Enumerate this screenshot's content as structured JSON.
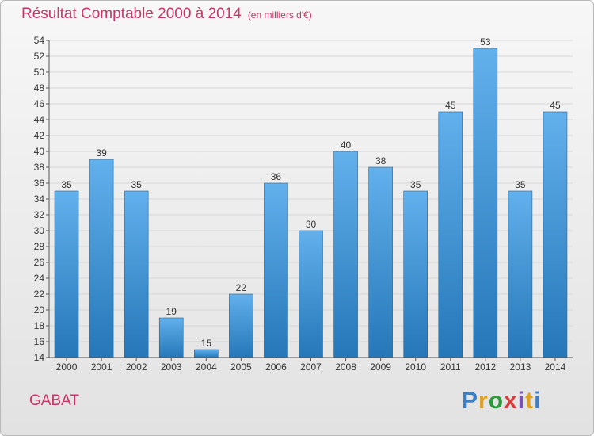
{
  "title": "Résultat Comptable 2000 à 2014",
  "subtitle": "(en milliers d'€)",
  "commune": "GABAT",
  "brand": {
    "text": "Proxiti",
    "letter_colors": [
      "#3d7fc6",
      "#e0a020",
      "#2a9a3a",
      "#d83c3c",
      "#7a4fb5",
      "#e0a020",
      "#3d7fc6"
    ]
  },
  "colors": {
    "title": "#cc3366",
    "bar_top": "#62b0ec",
    "bar_bottom": "#2577b8",
    "bar_edge": "#1d67a4"
  },
  "chart_data": {
    "type": "bar",
    "title": "Résultat Comptable 2000 à 2014",
    "subtitle": "(en milliers d'€)",
    "xlabel": "",
    "ylabel": "",
    "categories": [
      "2000",
      "2001",
      "2002",
      "2003",
      "2004",
      "2005",
      "2006",
      "2007",
      "2008",
      "2009",
      "2010",
      "2011",
      "2012",
      "2013",
      "2014"
    ],
    "values": [
      35,
      39,
      35,
      19,
      15,
      22,
      36,
      30,
      40,
      38,
      35,
      45,
      53,
      35,
      45
    ],
    "ylim": [
      14,
      54
    ],
    "yticks": [
      14,
      16,
      18,
      20,
      22,
      24,
      26,
      28,
      30,
      32,
      34,
      36,
      38,
      40,
      42,
      44,
      46,
      48,
      50,
      52,
      54
    ],
    "grid": true
  }
}
